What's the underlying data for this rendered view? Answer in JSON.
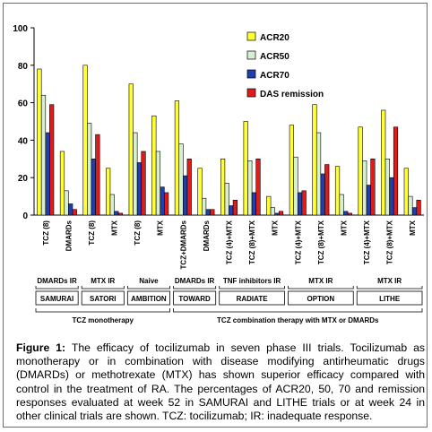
{
  "chart_data": {
    "type": "bar",
    "ylim": [
      0,
      100
    ],
    "yticks": [
      0,
      20,
      40,
      60,
      80,
      100
    ],
    "grid": false,
    "legend_placement": "top-right",
    "series": [
      {
        "name": "ACR20",
        "color": "#ffff33"
      },
      {
        "name": "ACR50",
        "color": "#d8f0d0"
      },
      {
        "name": "ACR70",
        "color": "#1f3fb0"
      },
      {
        "name": "DAS remission",
        "color": "#dd1c1c"
      }
    ],
    "categories": [
      {
        "label": "TCZ (8)",
        "values": [
          78,
          64,
          44,
          59
        ]
      },
      {
        "label": "DMARDs",
        "values": [
          34,
          13,
          6,
          3
        ]
      },
      {
        "label": "TCZ (8)",
        "values": [
          80,
          49,
          30,
          43
        ]
      },
      {
        "label": "MTX",
        "values": [
          25,
          11,
          2,
          1
        ]
      },
      {
        "label": "TCZ (8)",
        "values": [
          70,
          44,
          28,
          34
        ]
      },
      {
        "label": "MTX",
        "values": [
          53,
          34,
          15,
          12
        ]
      },
      {
        "label": "TCZ+DMARDs",
        "values": [
          61,
          38,
          21,
          30
        ]
      },
      {
        "label": "DMARDs",
        "values": [
          25,
          9,
          3,
          3
        ]
      },
      {
        "label": "TCZ (4)+MTX",
        "values": [
          30,
          17,
          5,
          8
        ]
      },
      {
        "label": "TCZ (8)+MTX",
        "values": [
          50,
          29,
          12,
          30
        ]
      },
      {
        "label": "MTX",
        "values": [
          10,
          4,
          1,
          2
        ]
      },
      {
        "label": "TCZ (4)+MTX",
        "values": [
          48,
          31,
          12,
          13
        ]
      },
      {
        "label": "TCZ (8)+MTX",
        "values": [
          59,
          44,
          22,
          27
        ]
      },
      {
        "label": "MTX",
        "values": [
          26,
          11,
          2,
          1
        ]
      },
      {
        "label": "TCZ (4)+MTX",
        "values": [
          47,
          29,
          16,
          30
        ]
      },
      {
        "label": "TCZ (8)+MTX",
        "values": [
          56,
          30,
          20,
          47
        ]
      },
      {
        "label": "MTX",
        "values": [
          25,
          10,
          4,
          8
        ]
      }
    ],
    "groups": [
      {
        "population": "DMARDs IR",
        "trial": "SAMURAI",
        "start": 0,
        "end": 1
      },
      {
        "population": "MTX IR",
        "trial": "SATORI",
        "start": 2,
        "end": 3
      },
      {
        "population": "Naive",
        "trial": "AMBITION",
        "start": 4,
        "end": 5
      },
      {
        "population": "DMARDs IR",
        "trial": "TOWARD",
        "start": 6,
        "end": 7
      },
      {
        "population": "TNF inhibitors  IR",
        "trial": "RADIATE",
        "start": 8,
        "end": 10
      },
      {
        "population": "MTX IR",
        "trial": "OPTION",
        "start": 11,
        "end": 13
      },
      {
        "population": "MTX IR",
        "trial": "LITHE",
        "start": 14,
        "end": 16
      }
    ],
    "supergroups": [
      {
        "label": "TCZ monotherapy",
        "start": 0,
        "end": 5
      },
      {
        "label": "TCZ combination therapy with MTX or DMARDs",
        "start": 6,
        "end": 16
      }
    ]
  },
  "caption": {
    "figure_label": "Figure 1:",
    "text": " The efficacy of tocilizumab in seven phase III trials. Tocilizumab as monotherapy or in combination with disease modifying antirheumatic drugs (DMARDs) or methotrexate (MTX) has shown superior efficacy compared with control in the treatment of RA. The percentages of ACR20, 50, 70 and remission responses evaluated at week 52 in SAMURAI and LITHE trials or at week 24 in other clinical trials are shown. TCZ: tocilizumab; IR: inadequate response."
  }
}
